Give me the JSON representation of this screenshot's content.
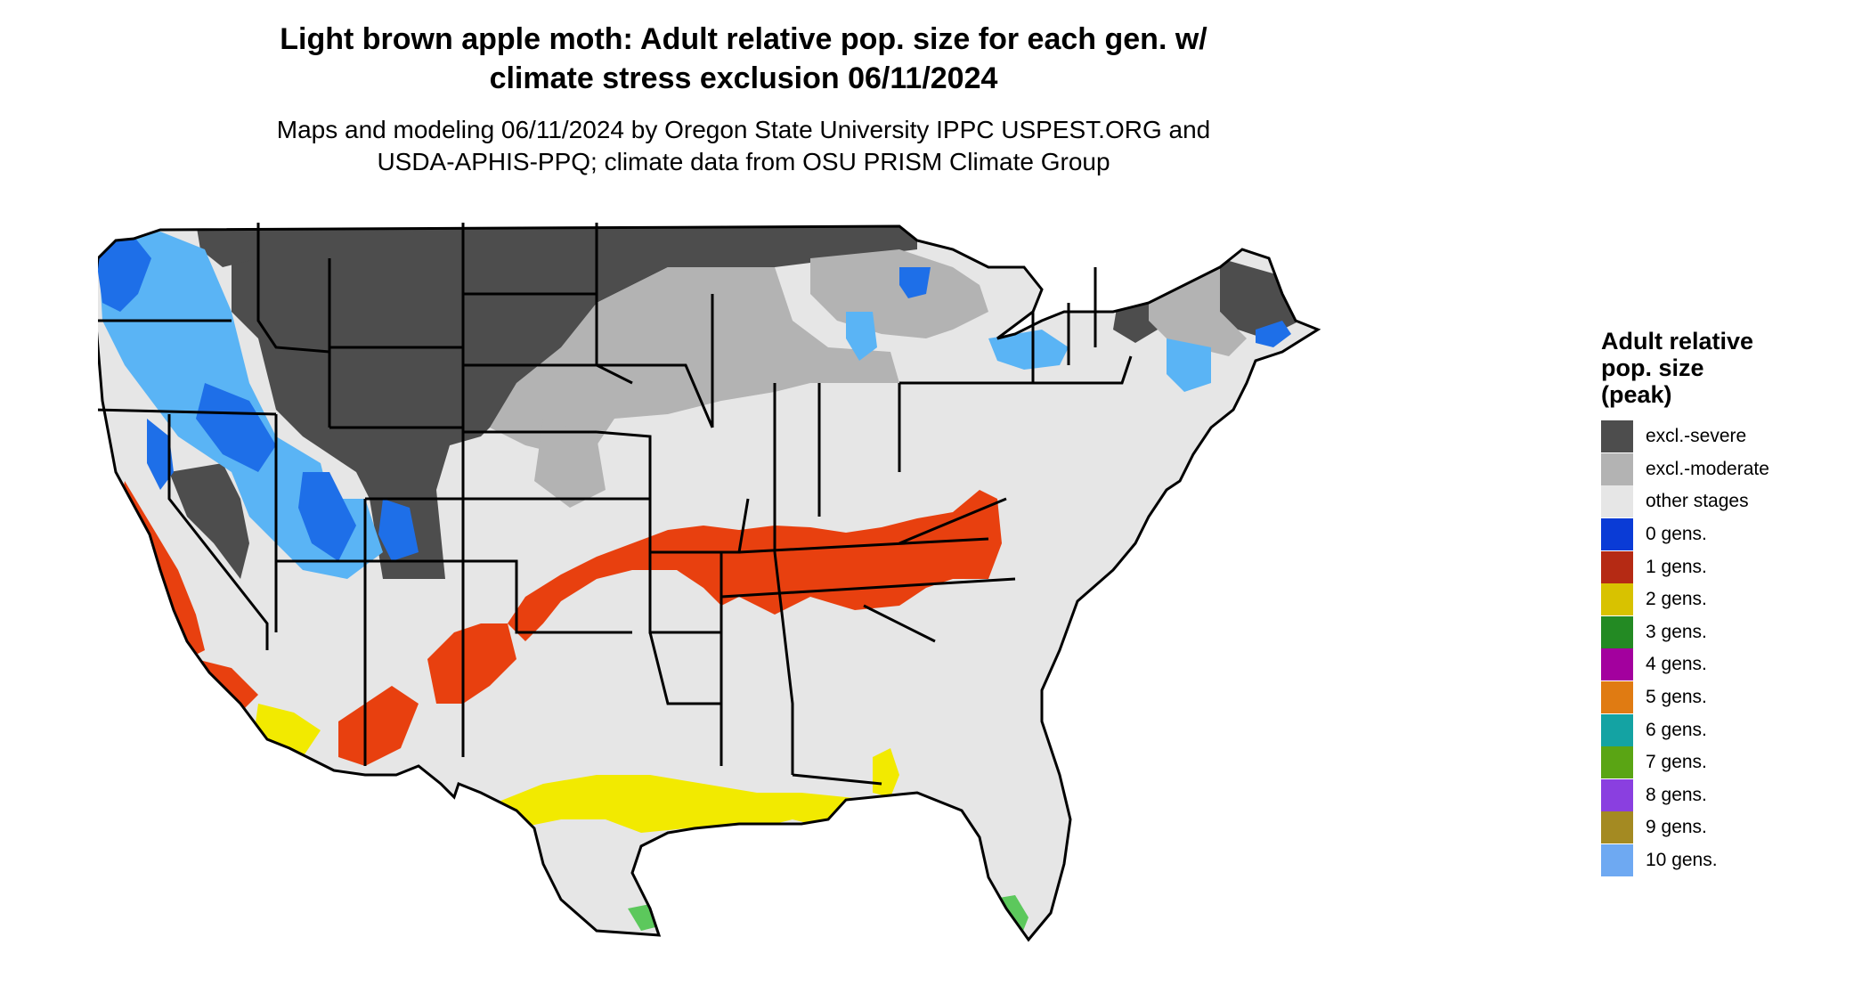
{
  "title": {
    "line1": "Light brown apple moth: Adult relative pop. size for each gen. w/",
    "line2": "climate stress exclusion 06/11/2024"
  },
  "subtitle": {
    "line1": "Maps and modeling 06/11/2024 by Oregon State University IPPC USPEST.ORG and",
    "line2": "USDA-APHIS-PPQ; climate data from OSU PRISM Climate Group"
  },
  "legend": {
    "title_lines": [
      "Adult relative",
      "pop. size",
      "(peak)"
    ],
    "items": [
      {
        "label": "excl.-severe",
        "color": "#4d4d4d"
      },
      {
        "label": "excl.-moderate",
        "color": "#b3b3b3"
      },
      {
        "label": "other stages",
        "color": "#e6e6e6"
      },
      {
        "label": "0 gens.",
        "color": "#0a3bd6"
      },
      {
        "label": "1 gens.",
        "color": "#b52a14"
      },
      {
        "label": "2 gens.",
        "color": "#d8c200"
      },
      {
        "label": "3 gens.",
        "color": "#238a23"
      },
      {
        "label": "4 gens.",
        "color": "#a3009e"
      },
      {
        "label": "5 gens.",
        "color": "#e07b12"
      },
      {
        "label": "6 gens.",
        "color": "#14a3a3"
      },
      {
        "label": "7 gens.",
        "color": "#5aa514"
      },
      {
        "label": "8 gens.",
        "color": "#8a3fe0"
      },
      {
        "label": "9 gens.",
        "color": "#a48a22"
      },
      {
        "label": "10 gens.",
        "color": "#6ea9f2"
      }
    ]
  },
  "map_colors": {
    "land": "#e6e6e6",
    "excl_severe": "#4d4d4d",
    "excl_moderate": "#b3b3b3",
    "gen0": "#1e6fe8",
    "gen0_light": "#5ab4f5",
    "gen1": "#e8400f",
    "gen2": "#f2ea00",
    "gen3": "#5cc85c",
    "border": "#000000"
  }
}
